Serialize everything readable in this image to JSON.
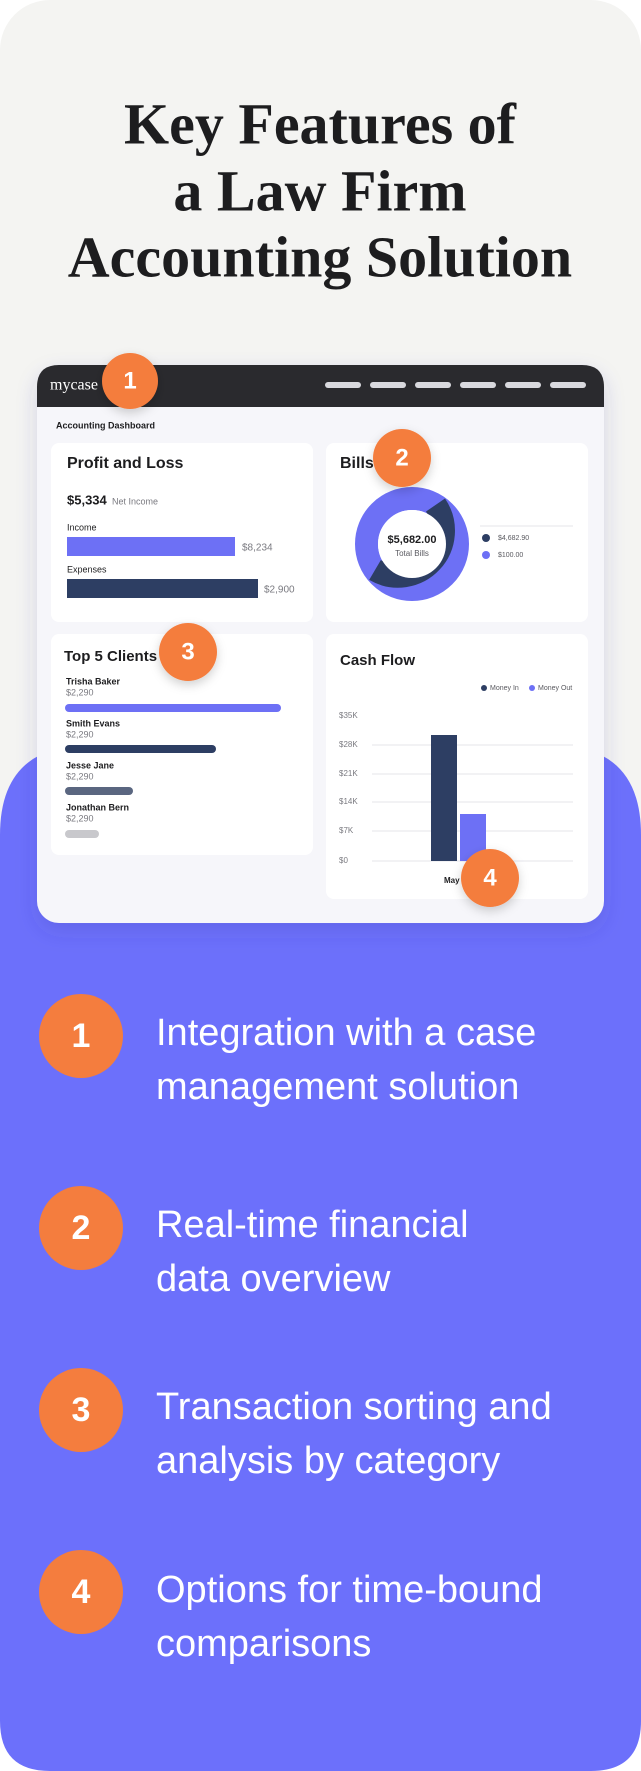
{
  "header": {
    "title_lines": [
      "Key Features of",
      "a Law Firm",
      "Accounting Solution"
    ]
  },
  "dashboard": {
    "brand": "mycase",
    "heading": "Accounting Dashboard",
    "profit_and_loss": {
      "title": "Profit and Loss",
      "net_amount": "$5,334",
      "net_label": "Net Income",
      "rows": [
        {
          "label": "Income",
          "value": "$8,234"
        },
        {
          "label": "Expenses",
          "value": "$2,900"
        }
      ]
    },
    "bills": {
      "title": "Bills",
      "total": "$5,682.00",
      "total_label": "Total Bills",
      "legend": [
        "$4,682.90",
        "$100.00"
      ]
    },
    "top_clients": {
      "title": "Top 5 Clients",
      "clients": [
        {
          "name": "Trisha Baker",
          "amount": "$2,290"
        },
        {
          "name": "Smith Evans",
          "amount": "$2,290"
        },
        {
          "name": "Jesse Jane",
          "amount": "$2,290"
        },
        {
          "name": "Jonathan Bern",
          "amount": "$2,290"
        }
      ]
    },
    "cash_flow": {
      "title": "Cash Flow",
      "legend": [
        "Money In",
        "Money Out"
      ],
      "y_labels": [
        "$35K",
        "$28K",
        "$21K",
        "$14K",
        "$7K",
        "$0"
      ],
      "x_label": "May"
    }
  },
  "features": [
    {
      "number": 1,
      "lines": [
        "Integration with a case",
        "management solution"
      ]
    },
    {
      "number": 2,
      "lines": [
        "Real-time financial",
        "data overview"
      ]
    },
    {
      "number": 3,
      "lines": [
        "Transaction sorting and",
        "analysis by category"
      ]
    },
    {
      "number": 4,
      "lines": [
        "Options for time-bound",
        "comparisons"
      ]
    }
  ]
}
